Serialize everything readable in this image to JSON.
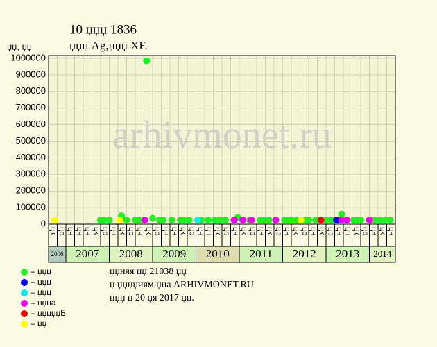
{
  "chart_data": {
    "type": "scatter",
    "title": "10 џџџ 1836",
    "subtitle": "џџџ  Ag,џџџ  XF.",
    "y_label": "џџ, џџ",
    "watermark": "arhivmonet.ru",
    "xlim": [
      0,
      40
    ],
    "ylim": [
      0,
      1000000
    ],
    "yticks": [
      0,
      100000,
      200000,
      300000,
      400000,
      500000,
      600000,
      700000,
      800000,
      900000,
      1000000
    ],
    "grid": true,
    "columns": [
      "цк",
      "цр",
      "цн",
      "цн",
      "цн",
      "цк",
      "цр",
      "цн",
      "цк",
      "цр",
      "цн",
      "цк",
      "цр",
      "цн",
      "цн",
      "цк",
      "цр",
      "цн",
      "цн",
      "цк",
      "цр",
      "цн",
      "цк",
      "цр",
      "цн",
      "цк",
      "цр",
      "цн",
      "цк",
      "цр",
      "цн",
      "цк",
      "цр",
      "цн",
      "цн",
      "цк",
      "цр",
      "цн",
      "цк",
      "цн"
    ],
    "years": [
      {
        "label": "2006",
        "columns": 2,
        "color": "#b4ccc0"
      },
      {
        "label": "2007",
        "columns": 5,
        "color": "#cdf2b4"
      },
      {
        "label": "2008",
        "columns": 5,
        "color": "#e0f2c0"
      },
      {
        "label": "2009",
        "columns": 5,
        "color": "#cdf2b4"
      },
      {
        "label": "2010",
        "columns": 5,
        "color": "#dcdcac"
      },
      {
        "label": "2011",
        "columns": 5,
        "color": "#cdf2b4"
      },
      {
        "label": "2012",
        "columns": 5,
        "color": "#e0f2c0"
      },
      {
        "label": "2013",
        "columns": 5,
        "color": "#cdf2b4"
      },
      {
        "label": "2014",
        "columns": 3,
        "color": "#e0f2c0"
      }
    ],
    "series": [
      {
        "name": "– џџџ",
        "color": "#22ee22",
        "x": [
          6.0,
          6.4,
          7.0,
          8.4,
          9.0,
          10.0,
          10.4,
          11.3,
          12.0,
          12.8,
          13.2,
          14.2,
          15.2,
          15.6,
          16.2,
          17.6,
          18.4,
          19.2,
          19.8,
          20.4,
          21.8,
          23.2,
          24.4,
          24.8,
          25.4,
          27.2,
          27.6,
          28.0,
          28.6,
          29.6,
          30.0,
          30.8,
          32.0,
          32.6,
          33.8,
          35.2,
          35.6,
          36.0,
          37.6,
          38.2,
          38.8,
          39.4
        ],
        "values": [
          25000,
          25000,
          25000,
          50000,
          25000,
          25000,
          25000,
          985000,
          35000,
          25000,
          25000,
          25000,
          25000,
          25000,
          25000,
          25000,
          25000,
          25000,
          25000,
          25000,
          40000,
          25000,
          25000,
          25000,
          25000,
          25000,
          25000,
          25000,
          25000,
          25000,
          25000,
          25000,
          25000,
          25000,
          60000,
          25000,
          25000,
          25000,
          25000,
          25000,
          25000,
          25000
        ]
      },
      {
        "name": "– џџџ",
        "color": "#0000ee",
        "x": [
          33.2
        ],
        "values": [
          25000
        ]
      },
      {
        "name": "– џџџ",
        "color": "#00eeee",
        "x": [
          17.2
        ],
        "values": [
          25000
        ]
      },
      {
        "name": "– џџџа",
        "color": "#ee00ee",
        "x": [
          11.1,
          21.4,
          22.4,
          23.4,
          26.2,
          33.8,
          34.4,
          37.0
        ],
        "values": [
          25000,
          25000,
          25000,
          25000,
          25000,
          25000,
          25000,
          25000
        ]
      },
      {
        "name": "– џџџџџБ",
        "color": "#ee0000",
        "x": [
          31.4
        ],
        "values": [
          25000
        ]
      },
      {
        "name": "– џџ",
        "color": "#ffff00",
        "x": [
          0.7,
          8.2,
          29.1
        ],
        "values": [
          25000,
          25000,
          25000
        ]
      }
    ],
    "footer": [
      "џџняя џџ 21038 џџ",
      "џ џџџџиям џџа ARHIVMONET.RU",
      "џџџ џ 20 џя 2017 џџ."
    ]
  }
}
